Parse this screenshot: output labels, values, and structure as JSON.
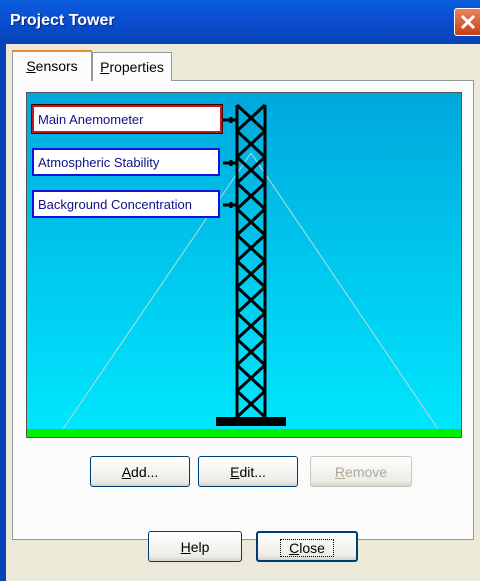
{
  "window": {
    "title": "Project Tower"
  },
  "tabs": [
    "Sensors",
    "Properties"
  ],
  "sensors": [
    "Main Anemometer",
    "Atmospheric Stability",
    "Background Concentration"
  ],
  "buttons": {
    "add": "Add...",
    "edit": "Edit...",
    "remove": "Remove",
    "help": "Help",
    "close": "Close"
  }
}
